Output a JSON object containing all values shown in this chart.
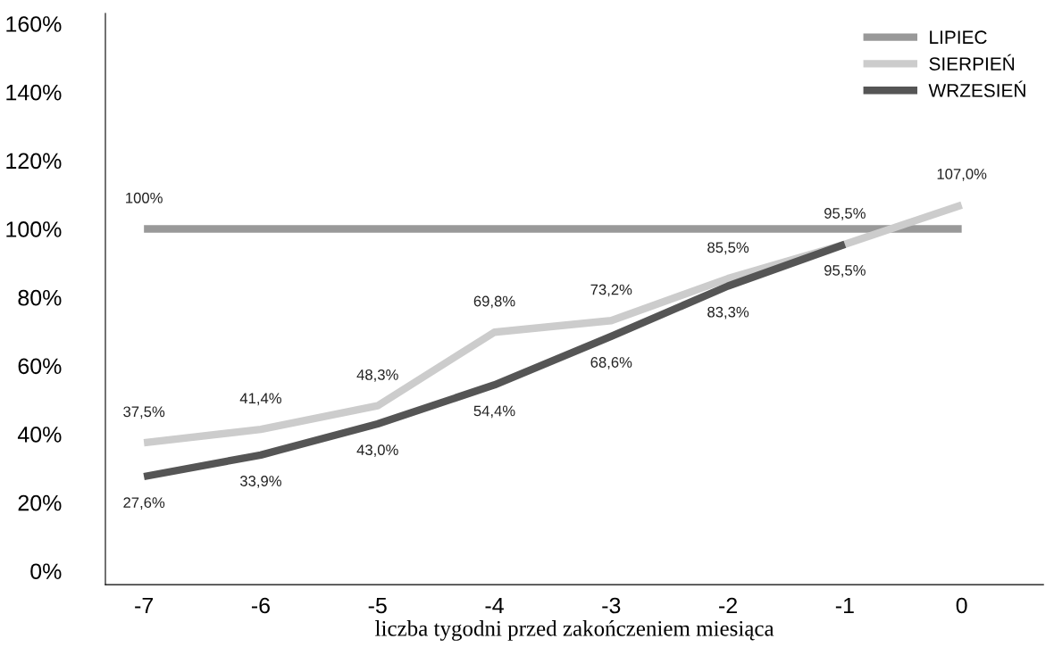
{
  "chart_data": {
    "type": "line",
    "xlabel": "liczba tygodni przed zakończeniem miesiąca",
    "x": [
      -7,
      -6,
      -5,
      -4,
      -3,
      -2,
      -1,
      0
    ],
    "xlim": [
      -7.33,
      0.7
    ],
    "xticks": [
      -7,
      -6,
      -5,
      -4,
      -3,
      -2,
      -1,
      0
    ],
    "ylim": [
      -4,
      163
    ],
    "yticks": [
      {
        "value": 0,
        "label": "0%"
      },
      {
        "value": 20,
        "label": "20%"
      },
      {
        "value": 40,
        "label": "40%"
      },
      {
        "value": 60,
        "label": "60%"
      },
      {
        "value": 80,
        "label": "80%"
      },
      {
        "value": 100,
        "label": "100%"
      },
      {
        "value": 120,
        "label": "120%"
      },
      {
        "value": 140,
        "label": "140%"
      },
      {
        "value": 160,
        "label": "160%"
      }
    ],
    "grid": false,
    "legend": "top right",
    "marker": "none",
    "line_style": "solid",
    "series": [
      {
        "name": "LIPIEC",
        "color": "#999999",
        "values": [
          100,
          100,
          100,
          100,
          100,
          100,
          100,
          100
        ],
        "value_labels": [
          "100%",
          null,
          null,
          null,
          null,
          null,
          null,
          null
        ]
      },
      {
        "name": "SIERPIEŃ",
        "color": "#cccccc",
        "values": [
          37.5,
          41.4,
          48.3,
          69.8,
          73.2,
          85.5,
          95.5,
          107.0
        ],
        "value_labels": [
          "37,5%",
          "41,4%",
          "48,3%",
          "69,8%",
          "73,2%",
          "85,5%",
          "95,5%",
          "107,0%"
        ]
      },
      {
        "name": "WRZESIEŃ",
        "color": "#555555",
        "x": [
          -7,
          -6,
          -5,
          -4,
          -3,
          -2,
          -1
        ],
        "values": [
          27.6,
          33.9,
          43.0,
          54.4,
          68.6,
          83.3,
          95.5
        ],
        "value_labels": [
          "27,6%",
          "33,9%",
          "43,0%",
          "54,4%",
          "68,6%",
          "83,3%",
          "95,5%"
        ]
      }
    ]
  }
}
